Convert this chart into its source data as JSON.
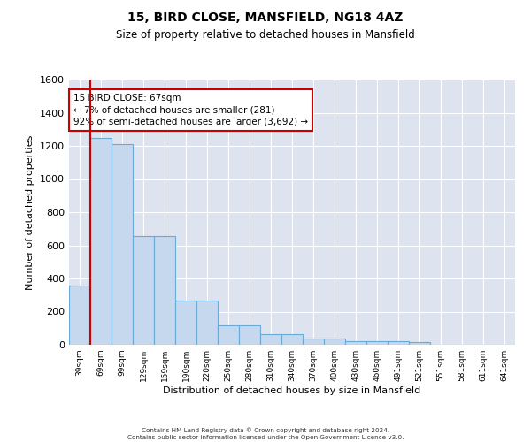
{
  "title": "15, BIRD CLOSE, MANSFIELD, NG18 4AZ",
  "subtitle": "Size of property relative to detached houses in Mansfield",
  "xlabel": "Distribution of detached houses by size in Mansfield",
  "ylabel": "Number of detached properties",
  "bar_color": "#c5d8ee",
  "bar_edge_color": "#6aaad4",
  "background_color": "#dde4f0",
  "grid_color": "#ffffff",
  "categories": [
    "39sqm",
    "69sqm",
    "99sqm",
    "129sqm",
    "159sqm",
    "190sqm",
    "220sqm",
    "250sqm",
    "280sqm",
    "310sqm",
    "340sqm",
    "370sqm",
    "400sqm",
    "430sqm",
    "460sqm",
    "491sqm",
    "521sqm",
    "551sqm",
    "581sqm",
    "611sqm",
    "641sqm"
  ],
  "values": [
    360,
    1250,
    1210,
    655,
    655,
    265,
    265,
    115,
    115,
    65,
    65,
    35,
    35,
    20,
    20,
    20,
    15,
    0,
    0,
    0,
    0
  ],
  "ylim": [
    0,
    1600
  ],
  "yticks": [
    0,
    200,
    400,
    600,
    800,
    1000,
    1200,
    1400,
    1600
  ],
  "annotation_text": "15 BIRD CLOSE: 67sqm\n← 7% of detached houses are smaller (281)\n92% of semi-detached houses are larger (3,692) →",
  "annotation_box_color": "#ffffff",
  "annotation_box_edge": "#cc0000",
  "property_line_color": "#cc0000",
  "footer_line1": "Contains HM Land Registry data © Crown copyright and database right 2024.",
  "footer_line2": "Contains public sector information licensed under the Open Government Licence v3.0."
}
